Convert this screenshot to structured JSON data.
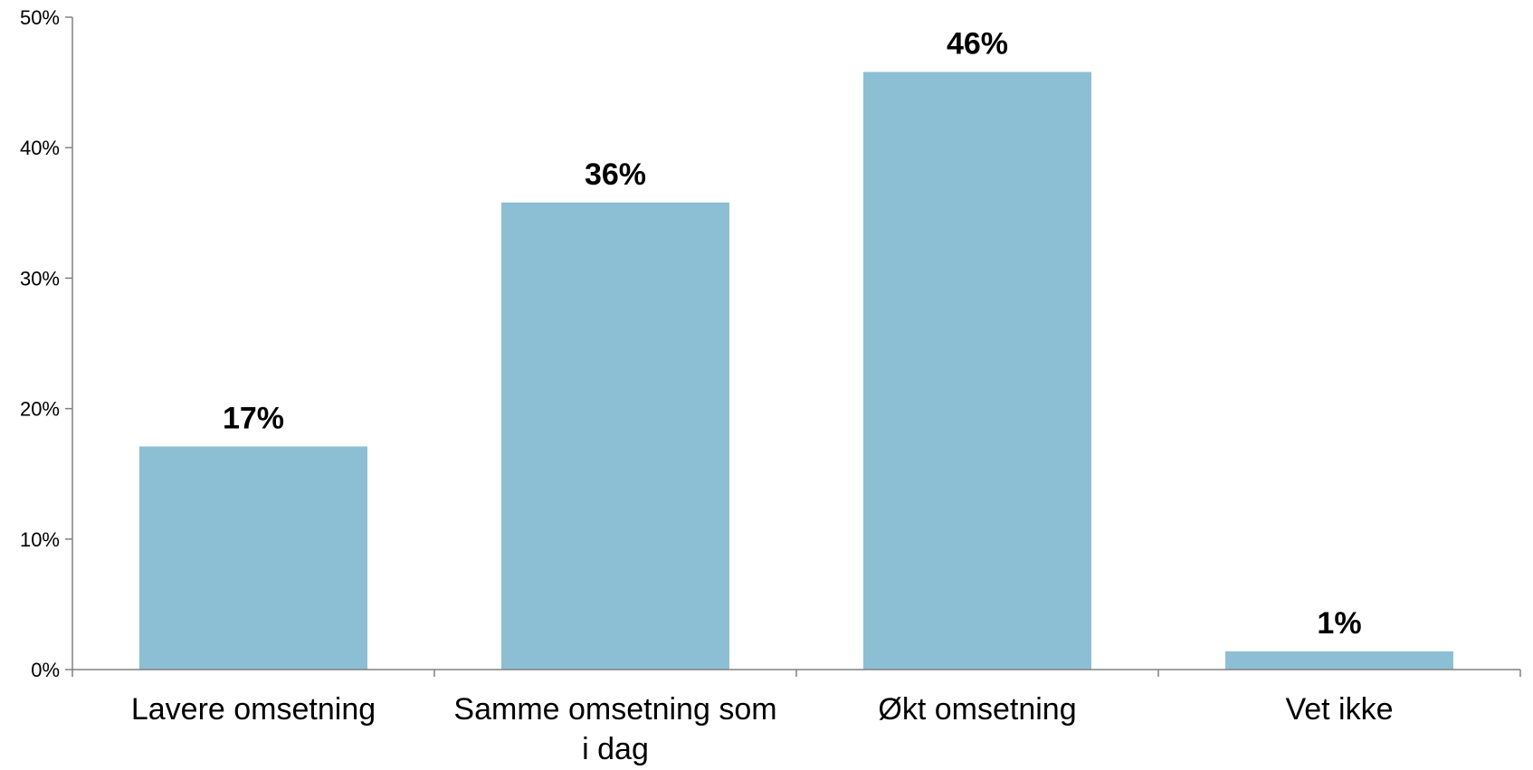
{
  "chart_data": {
    "type": "bar",
    "categories": [
      "Lavere omsetning",
      "Samme omsetning som i dag",
      "Økt omsetning",
      "Vet ikke"
    ],
    "category_lines": [
      [
        "Lavere omsetning"
      ],
      [
        "Samme omsetning som",
        "i dag"
      ],
      [
        "Økt omsetning"
      ],
      [
        "Vet ikke"
      ]
    ],
    "values": [
      17.1,
      35.8,
      45.8,
      1.4
    ],
    "data_labels": [
      "17%",
      "36%",
      "46%",
      "1%"
    ],
    "ylim": [
      0,
      50
    ],
    "yticks": [
      0,
      10,
      20,
      30,
      40,
      50
    ],
    "ytick_labels": [
      "0%",
      "10%",
      "20%",
      "30%",
      "40%",
      "50%"
    ],
    "title": "",
    "xlabel": "",
    "ylabel": "",
    "grid": false,
    "legend": "none",
    "colors": {
      "bar": "#8cbfd4",
      "axis": "#808080",
      "text": "#000000"
    }
  }
}
